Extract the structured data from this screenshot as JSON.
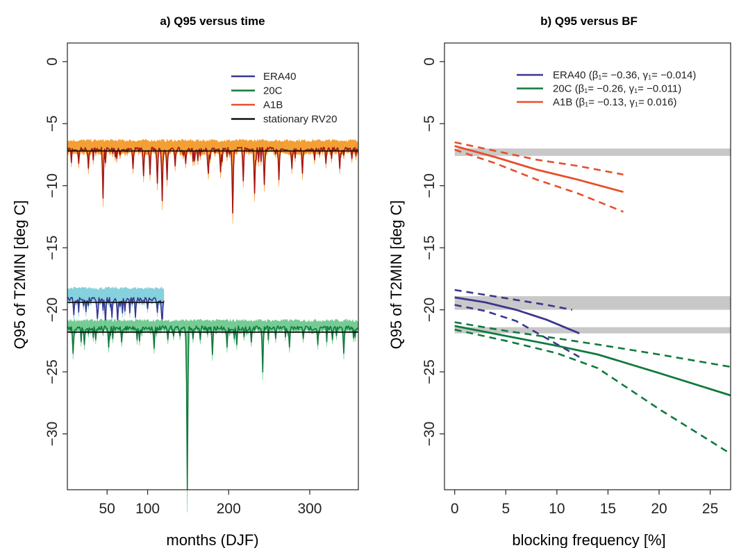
{
  "chart_data": [
    {
      "type": "line",
      "title": "a) Q95 versus time",
      "xlabel": "months (DJF)",
      "ylabel": "Q95 of T2MIN [deg C]",
      "xlim": [
        1,
        360
      ],
      "ylim": [
        -34.5,
        1.5
      ],
      "x_ticks": [
        50,
        100,
        200,
        300
      ],
      "y_ticks": [
        0,
        -5,
        -10,
        -15,
        -20,
        -25,
        -30
      ],
      "grid": false,
      "legend_position": "top-right",
      "legend": [
        {
          "name": "ERA40",
          "color": "#3a3590"
        },
        {
          "name": "20C",
          "color": "#0f7a3c"
        },
        {
          "name": "A1B",
          "color": "#e84e2a"
        },
        {
          "name": "stationary RV20",
          "color": "#111111"
        }
      ],
      "series": [
        {
          "name": "A1B",
          "n_months": 360,
          "baseline": -6.9,
          "upper_band": -6.5,
          "dips": [
            [
              15,
              -8.2
            ],
            [
              27,
              -8.6
            ],
            [
              45,
              -11.0
            ],
            [
              62,
              -7.8
            ],
            [
              82,
              -8.6
            ],
            [
              95,
              -9.2
            ],
            [
              103,
              -9.1
            ],
            [
              112,
              -9.8
            ],
            [
              118,
              -11.2
            ],
            [
              124,
              -9.5
            ],
            [
              134,
              -8.4
            ],
            [
              147,
              -8.2
            ],
            [
              158,
              -8.0
            ],
            [
              175,
              -9.0
            ],
            [
              190,
              -8.9
            ],
            [
              205,
              -12.2
            ],
            [
              218,
              -9.6
            ],
            [
              232,
              -10.6
            ],
            [
              244,
              -9.9
            ],
            [
              262,
              -9.5
            ],
            [
              278,
              -8.6
            ],
            [
              291,
              -9.0
            ],
            [
              306,
              -7.9
            ],
            [
              320,
              -8.2
            ],
            [
              337,
              -8.6
            ],
            [
              352,
              -7.8
            ]
          ],
          "line_color": "#a51616",
          "band_color": "#f39a2a",
          "stationary_rv20": -7.2
        },
        {
          "name": "ERA40",
          "n_months": 120,
          "baseline": -19.0,
          "upper_band": -18.4,
          "dips": [
            [
              9,
              -20.4
            ],
            [
              24,
              -19.9
            ],
            [
              38,
              -20.7
            ],
            [
              48,
              -21.1
            ],
            [
              56,
              -20.6
            ],
            [
              63,
              -21.0
            ],
            [
              72,
              -20.1
            ],
            [
              85,
              -20.6
            ],
            [
              100,
              -19.9
            ],
            [
              112,
              -20.2
            ],
            [
              118,
              -21.2
            ]
          ],
          "line_color": "#3a3590",
          "band_color": "#7fcfdc",
          "stationary_rv20": -19.4
        },
        {
          "name": "20C",
          "n_months": 360,
          "baseline": -21.3,
          "upper_band": -21.0,
          "dips": [
            [
              8,
              -23.5
            ],
            [
              22,
              -22.8
            ],
            [
              36,
              -22.4
            ],
            [
              52,
              -23.0
            ],
            [
              68,
              -22.6
            ],
            [
              90,
              -22.5
            ],
            [
              108,
              -23.1
            ],
            [
              125,
              -22.4
            ],
            [
              140,
              -22.1
            ],
            [
              149,
              -34.5
            ],
            [
              165,
              -22.4
            ],
            [
              180,
              -23.6
            ],
            [
              198,
              -23.0
            ],
            [
              210,
              -22.8
            ],
            [
              228,
              -22.6
            ],
            [
              242,
              -25.0
            ],
            [
              258,
              -22.3
            ],
            [
              275,
              -23.0
            ],
            [
              292,
              -22.3
            ],
            [
              310,
              -22.8
            ],
            [
              328,
              -22.4
            ],
            [
              342,
              -23.5
            ],
            [
              356,
              -22.2
            ]
          ],
          "line_color": "#0f7a3c",
          "band_color": "#6fc98f",
          "stationary_rv20": -21.8
        }
      ]
    },
    {
      "type": "line",
      "title": "b) Q95 versus BF",
      "xlabel": "blocking frequency [%]",
      "ylabel": "Q95 of T2MIN [deg C]",
      "xlim": [
        -1,
        27
      ],
      "ylim": [
        -34.5,
        1.5
      ],
      "x_ticks": [
        0,
        5,
        10,
        15,
        20,
        25
      ],
      "y_ticks": [
        0,
        -5,
        -10,
        -15,
        -20,
        -25,
        -30
      ],
      "grid": false,
      "legend_position": "top-right",
      "legend": [
        {
          "name": "ERA40",
          "params": "(β₁= −0.36, γ₁= −0.014)",
          "color": "#3a3590"
        },
        {
          "name": "20C",
          "params": "(β₁= −0.26, γ₁= −0.011)",
          "color": "#0f7a3c"
        },
        {
          "name": "A1B",
          "params": "(β₁= −0.13, γ₁= 0.016)",
          "color": "#e84e2a"
        }
      ],
      "gray_bands": [
        [
          -7.6,
          -7.0
        ],
        [
          -20.0,
          -18.9
        ],
        [
          -21.9,
          -21.4
        ]
      ],
      "series": [
        {
          "name": "A1B",
          "color": "#e84e2a",
          "fit": [
            [
              0,
              -6.8
            ],
            [
              4,
              -7.7
            ],
            [
              8,
              -8.7
            ],
            [
              12,
              -9.5
            ],
            [
              16.5,
              -10.5
            ]
          ],
          "upper": [
            [
              0,
              -6.5
            ],
            [
              4,
              -7.2
            ],
            [
              8,
              -7.9
            ],
            [
              12,
              -8.4
            ],
            [
              16.5,
              -9.1
            ]
          ],
          "lower": [
            [
              0,
              -7.1
            ],
            [
              4,
              -8.2
            ],
            [
              8,
              -9.5
            ],
            [
              12,
              -10.6
            ],
            [
              16.5,
              -12.1
            ]
          ]
        },
        {
          "name": "ERA40",
          "color": "#3a3590",
          "fit": [
            [
              0,
              -19.0
            ],
            [
              3,
              -19.4
            ],
            [
              6,
              -20.0
            ],
            [
              9,
              -20.8
            ],
            [
              12.2,
              -21.9
            ]
          ],
          "upper": [
            [
              0,
              -18.4
            ],
            [
              3,
              -18.8
            ],
            [
              6,
              -19.2
            ],
            [
              9,
              -19.6
            ],
            [
              11.5,
              -20.0
            ]
          ],
          "lower": [
            [
              0,
              -19.6
            ],
            [
              3,
              -20.1
            ],
            [
              6,
              -20.9
            ],
            [
              9,
              -22.3
            ],
            [
              12.2,
              -23.8
            ]
          ]
        },
        {
          "name": "20C",
          "color": "#0f7a3c",
          "fit": [
            [
              0,
              -21.3
            ],
            [
              5,
              -22.1
            ],
            [
              10,
              -22.9
            ],
            [
              14,
              -23.6
            ],
            [
              20,
              -25.1
            ],
            [
              27,
              -26.9
            ]
          ],
          "upper": [
            [
              0,
              -21.0
            ],
            [
              5,
              -21.7
            ],
            [
              10,
              -22.3
            ],
            [
              14,
              -22.8
            ],
            [
              20,
              -23.6
            ],
            [
              27,
              -24.6
            ]
          ],
          "lower": [
            [
              0,
              -21.6
            ],
            [
              5,
              -22.5
            ],
            [
              10,
              -23.5
            ],
            [
              14,
              -24.7
            ],
            [
              20,
              -28.0
            ],
            [
              27,
              -31.6
            ]
          ]
        }
      ]
    }
  ]
}
